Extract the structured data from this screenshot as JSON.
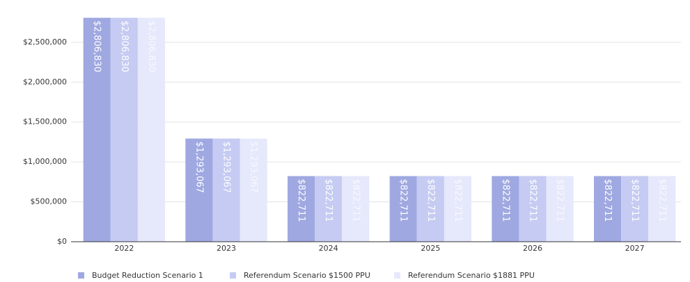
{
  "chart_data": {
    "type": "bar",
    "categories": [
      "2022",
      "2023",
      "2024",
      "2025",
      "2026",
      "2027"
    ],
    "series": [
      {
        "name": "Budget Reduction Scenario 1",
        "color": "#9fa8e0",
        "values": [
          2806830,
          1293067,
          822711,
          822711,
          822711,
          822711
        ],
        "value_labels": [
          "$2,806,830",
          "$1,293,067",
          "$822,711",
          "$822,711",
          "$822,711",
          "$822,711"
        ]
      },
      {
        "name": "Referendum Scenario $1500 PPU",
        "color": "#c5cbf2",
        "values": [
          2806830,
          1293067,
          822711,
          822711,
          822711,
          822711
        ],
        "value_labels": [
          "$2,806,830",
          "$1,293,067",
          "$822,711",
          "$822,711",
          "$822,711",
          "$822,711"
        ]
      },
      {
        "name": "Referendum Scenario $1881 PPU",
        "color": "#e6e8fb",
        "values": [
          2806830,
          1293067,
          822711,
          822711,
          822711,
          822711
        ],
        "value_labels": [
          "$2,806,830",
          "$1,293,067",
          "$822,711",
          "$822,711",
          "$822,711",
          "$822,711"
        ]
      }
    ],
    "ylim": [
      0,
      2960000
    ],
    "yticks": [
      {
        "value": 0,
        "label": "$0"
      },
      {
        "value": 500000,
        "label": "$500,000"
      },
      {
        "value": 1000000,
        "label": "$1,000,000"
      },
      {
        "value": 1500000,
        "label": "$1,500,000"
      },
      {
        "value": 2000000,
        "label": "$2,000,000"
      },
      {
        "value": 2500000,
        "label": "$2,500,000"
      }
    ],
    "grid": true,
    "legend": "bottom"
  }
}
